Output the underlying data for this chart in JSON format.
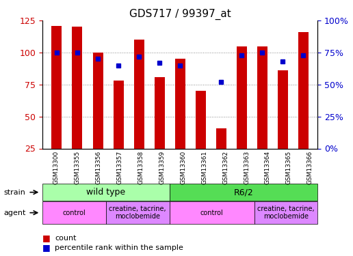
{
  "title": "GDS717 / 99397_at",
  "samples": [
    "GSM13300",
    "GSM13355",
    "GSM13356",
    "GSM13357",
    "GSM13358",
    "GSM13359",
    "GSM13360",
    "GSM13361",
    "GSM13362",
    "GSM13363",
    "GSM13364",
    "GSM13365",
    "GSM13366"
  ],
  "counts": [
    121,
    120,
    100,
    78,
    110,
    81,
    95,
    70,
    41,
    105,
    105,
    86,
    116
  ],
  "percentiles": [
    75,
    75,
    70,
    65,
    72,
    67,
    65,
    null,
    52,
    73,
    75,
    68,
    73
  ],
  "ylim_left": [
    25,
    125
  ],
  "ylim_right": [
    0,
    100
  ],
  "yticks_left": [
    25,
    50,
    75,
    100,
    125
  ],
  "yticks_right": [
    0,
    25,
    50,
    75,
    100
  ],
  "bar_color": "#cc0000",
  "dot_color": "#0000cc",
  "bar_width": 0.5,
  "strain_groups": [
    {
      "label": "wild type",
      "start": 0,
      "end": 6,
      "color": "#aaffaa"
    },
    {
      "label": "R6/2",
      "start": 6,
      "end": 13,
      "color": "#55dd55"
    }
  ],
  "agent_groups": [
    {
      "label": "control",
      "start": 0,
      "end": 3,
      "color": "#ff88ff"
    },
    {
      "label": "creatine, tacrine,\nmoclobemide",
      "start": 3,
      "end": 6,
      "color": "#dd88ff"
    },
    {
      "label": "control",
      "start": 6,
      "end": 10,
      "color": "#ff88ff"
    },
    {
      "label": "creatine, tacrine,\nmoclobemide",
      "start": 10,
      "end": 13,
      "color": "#dd88ff"
    }
  ],
  "background_color": "#ffffff",
  "grid_color": "#888888",
  "tick_label_color_left": "#cc0000",
  "tick_label_color_right": "#0000cc"
}
